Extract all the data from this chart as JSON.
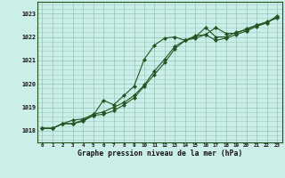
{
  "title": "Graphe pression niveau de la mer (hPa)",
  "background_color": "#cceee8",
  "grid_color": "#99ccbb",
  "line_color": "#225522",
  "x_labels": [
    "0",
    "1",
    "2",
    "3",
    "4",
    "5",
    "6",
    "7",
    "8",
    "9",
    "10",
    "11",
    "12",
    "13",
    "14",
    "15",
    "16",
    "17",
    "18",
    "19",
    "20",
    "21",
    "22",
    "23"
  ],
  "ylim": [
    1017.5,
    1023.5
  ],
  "yticks": [
    1018,
    1019,
    1020,
    1021,
    1022,
    1023
  ],
  "line1": [
    1018.1,
    1018.1,
    1018.3,
    1018.3,
    1018.4,
    1018.65,
    1019.3,
    1019.1,
    1019.5,
    1019.9,
    1021.05,
    1021.65,
    1021.95,
    1022.0,
    1021.85,
    1022.05,
    1022.1,
    1022.4,
    1022.15,
    1022.15,
    1022.35,
    1022.5,
    1022.65,
    1022.8
  ],
  "line2": [
    1018.1,
    1018.1,
    1018.3,
    1018.45,
    1018.5,
    1018.7,
    1018.8,
    1019.0,
    1019.2,
    1019.5,
    1019.95,
    1020.55,
    1021.05,
    1021.6,
    1021.85,
    1022.0,
    1022.4,
    1022.0,
    1022.0,
    1022.2,
    1022.3,
    1022.5,
    1022.6,
    1022.9
  ],
  "line3": [
    1018.1,
    1018.1,
    1018.3,
    1018.3,
    1018.45,
    1018.65,
    1018.7,
    1018.85,
    1019.1,
    1019.4,
    1019.9,
    1020.4,
    1020.9,
    1021.5,
    1021.85,
    1021.95,
    1022.1,
    1021.85,
    1021.95,
    1022.1,
    1022.25,
    1022.45,
    1022.6,
    1022.85
  ]
}
